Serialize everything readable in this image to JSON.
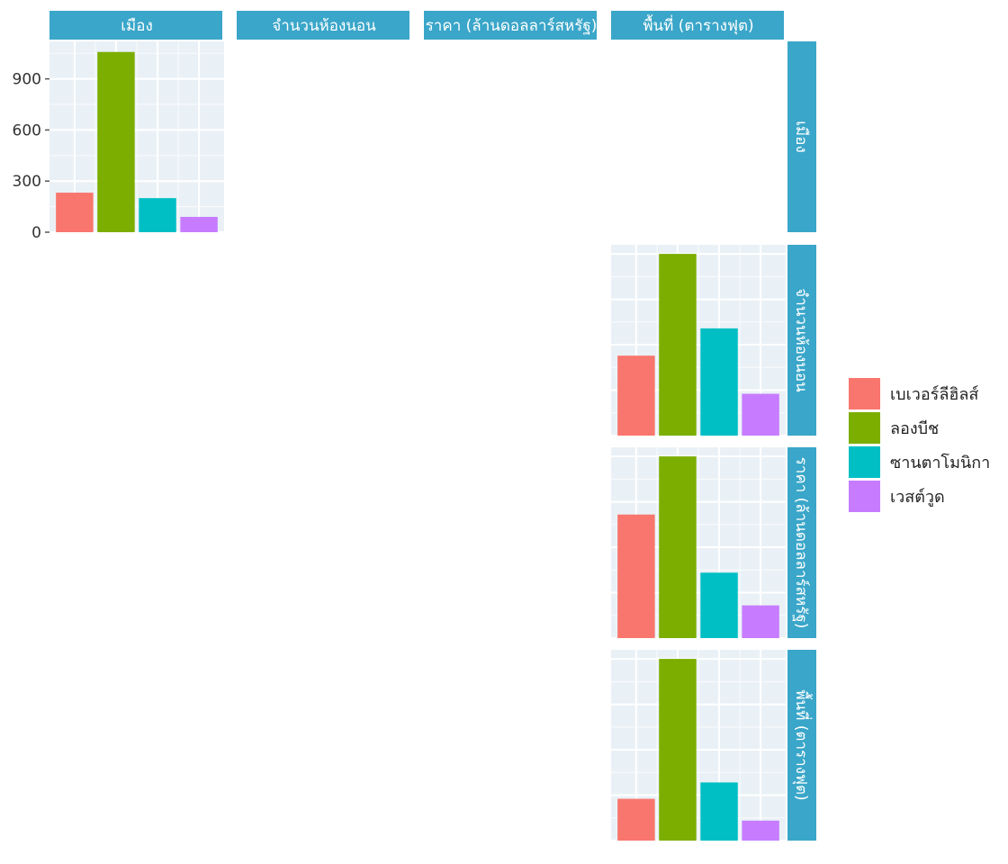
{
  "chart_data": {
    "type": "bar",
    "layout": "pairs-matrix",
    "variables": [
      "เมือง",
      "จำนวนห้องนอน",
      "ราคา (ล้านดอลลาร์สหรัฐ)",
      "พื้นที่ (ตารางฟุต)"
    ],
    "categories": [
      "เบเวอร์ลีฮิลส์",
      "ลองบีช",
      "ซานตาโมนิกา",
      "เวสต์วูด"
    ],
    "colors": [
      "#f8766d",
      "#7cae00",
      "#00bfc4",
      "#c77cff"
    ],
    "legend_position": "right",
    "grid": true,
    "panels": [
      {
        "col_var": "เมือง",
        "row_var": "เมือง",
        "values": [
          232,
          1058,
          200,
          90
        ],
        "ylim": [
          0,
          1120
        ],
        "yticks": [
          0,
          300,
          600,
          900
        ],
        "ytick_labels": [
          "0",
          "300",
          "600",
          "900"
        ]
      },
      {
        "col_var": "พื้นที่ (ตารางฟุต)",
        "row_var": "จำนวนห้องนอน",
        "values": [
          0.44,
          1.0,
          0.59,
          0.23
        ],
        "ylim": [
          0,
          1.05
        ]
      },
      {
        "col_var": "พื้นที่ (ตารางฟุต)",
        "row_var": "ราคา (ล้านดอลลาร์สหรัฐ)",
        "values": [
          0.68,
          1.0,
          0.36,
          0.18
        ],
        "ylim": [
          0,
          1.05
        ]
      },
      {
        "col_var": "พื้นที่ (ตารางฟุต)",
        "row_var": "พื้นที่ (ตารางฟุต)",
        "values": [
          0.23,
          1.0,
          0.32,
          0.11
        ],
        "ylim": [
          0,
          1.05
        ]
      }
    ]
  }
}
